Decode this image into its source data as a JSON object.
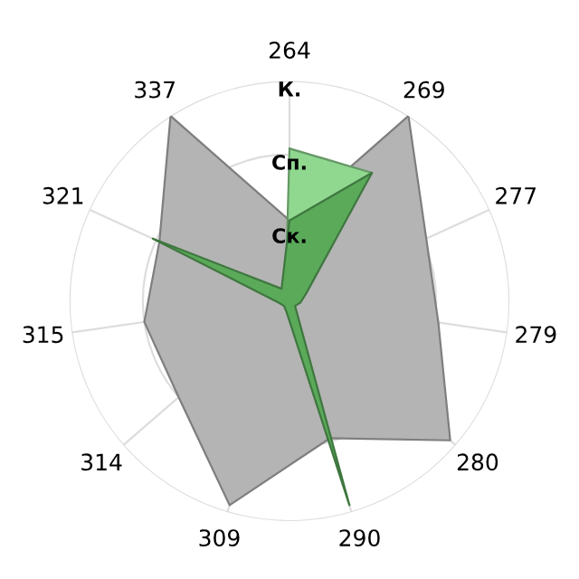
{
  "chart_data": {
    "type": "radar",
    "categories": [
      "264",
      "269",
      "277",
      "279",
      "280",
      "290",
      "309",
      "314",
      "315",
      "321",
      "337"
    ],
    "ylim": [
      0,
      3
    ],
    "yticks": [
      {
        "value": 1,
        "label": "Ск."
      },
      {
        "value": 2,
        "label": "Сп."
      },
      {
        "value": 3,
        "label": "К."
      }
    ],
    "grid": true,
    "marker": "none",
    "series": [
      {
        "color": "#b4b4b4",
        "values": [
          1.1,
          3,
          2.05,
          2.05,
          2.9,
          1.95,
          2.9,
          2.0,
          2.0,
          1.95,
          3
        ]
      },
      {
        "color": "#90d890",
        "values": [
          2.08,
          2.08,
          0.15,
          0.1,
          0.1,
          0.2,
          0.1,
          0.1,
          0.1,
          0.15,
          0.1
        ]
      },
      {
        "color": "#5aaa5a",
        "values": [
          1.1,
          2.08,
          0.25,
          0.15,
          0.1,
          2.9,
          0.15,
          0.1,
          0.15,
          2.05,
          0.2
        ]
      }
    ]
  }
}
